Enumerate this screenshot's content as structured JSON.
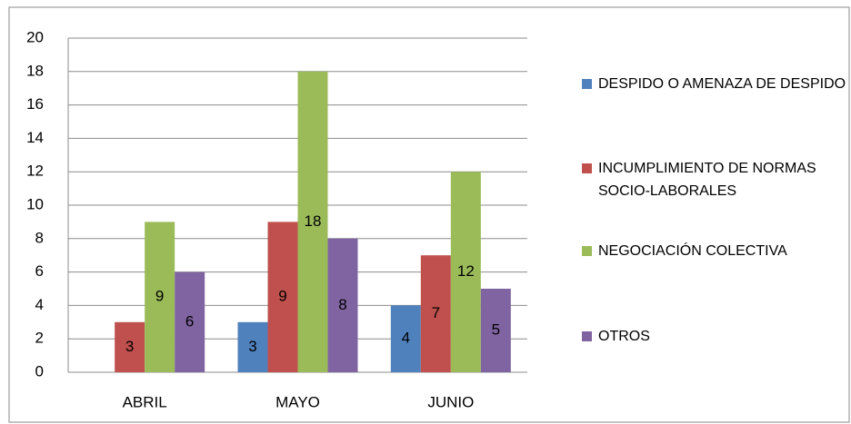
{
  "chart_data": {
    "type": "bar",
    "categories": [
      "ABRIL",
      "MAYO",
      "JUNIO"
    ],
    "series": [
      {
        "name": "DESPIDO O AMENAZA DE DESPIDO",
        "color": "#4f81bd",
        "values": [
          null,
          3,
          4
        ]
      },
      {
        "name": "INCUMPLIMIENTO DE NORMAS SOCIO-LABORALES",
        "color": "#c0504d",
        "values": [
          3,
          9,
          7
        ]
      },
      {
        "name": "NEGOCIACIÓN COLECTIVA",
        "color": "#9bbb59",
        "values": [
          9,
          18,
          12
        ]
      },
      {
        "name": "OTROS",
        "color": "#8064a2",
        "values": [
          6,
          8,
          5
        ]
      }
    ],
    "ylim": [
      0,
      20
    ],
    "yticks": [
      0,
      2,
      4,
      6,
      8,
      10,
      12,
      14,
      16,
      18,
      20
    ],
    "grid": true,
    "legend": "right"
  }
}
